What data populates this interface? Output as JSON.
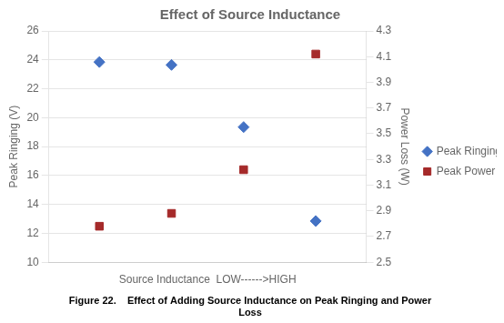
{
  "chart_data": {
    "type": "scatter",
    "title": "Effect of Source Inductance",
    "xlabel": "Source Inductance  LOW------>HIGH",
    "ylabel": "Peak Ringing (V)",
    "y2label": "Power Loss (W)",
    "annotations": [
      "Figure 22.    Effect of Adding Source Inductance on Peak Ringing and Power",
      "Loss"
    ],
    "x": [
      1,
      2,
      3,
      4
    ],
    "xlim": [
      0.3,
      4.7
    ],
    "series": [
      {
        "name": "Peak Ringing",
        "color": "#4472C4",
        "marker": "diamond",
        "values": [
          23.85,
          23.65,
          19.35,
          12.85
        ]
      },
      {
        "name": "Peak Power Loss",
        "color": "#A52A2A",
        "marker": "square",
        "axis": "y2",
        "values": [
          2.78,
          2.88,
          3.22,
          4.12
        ]
      }
    ],
    "ylim": [
      10,
      26
    ],
    "yticks": [
      10,
      12,
      14,
      16,
      18,
      20,
      22,
      24,
      26
    ],
    "y2lim": [
      2.5,
      4.3
    ],
    "y2ticks": [
      2.5,
      2.7,
      2.9,
      3.1,
      3.3,
      3.5,
      3.7,
      3.9,
      4.1,
      4.3
    ],
    "grid": true,
    "legend": "right",
    "tick_labels": "y"
  }
}
